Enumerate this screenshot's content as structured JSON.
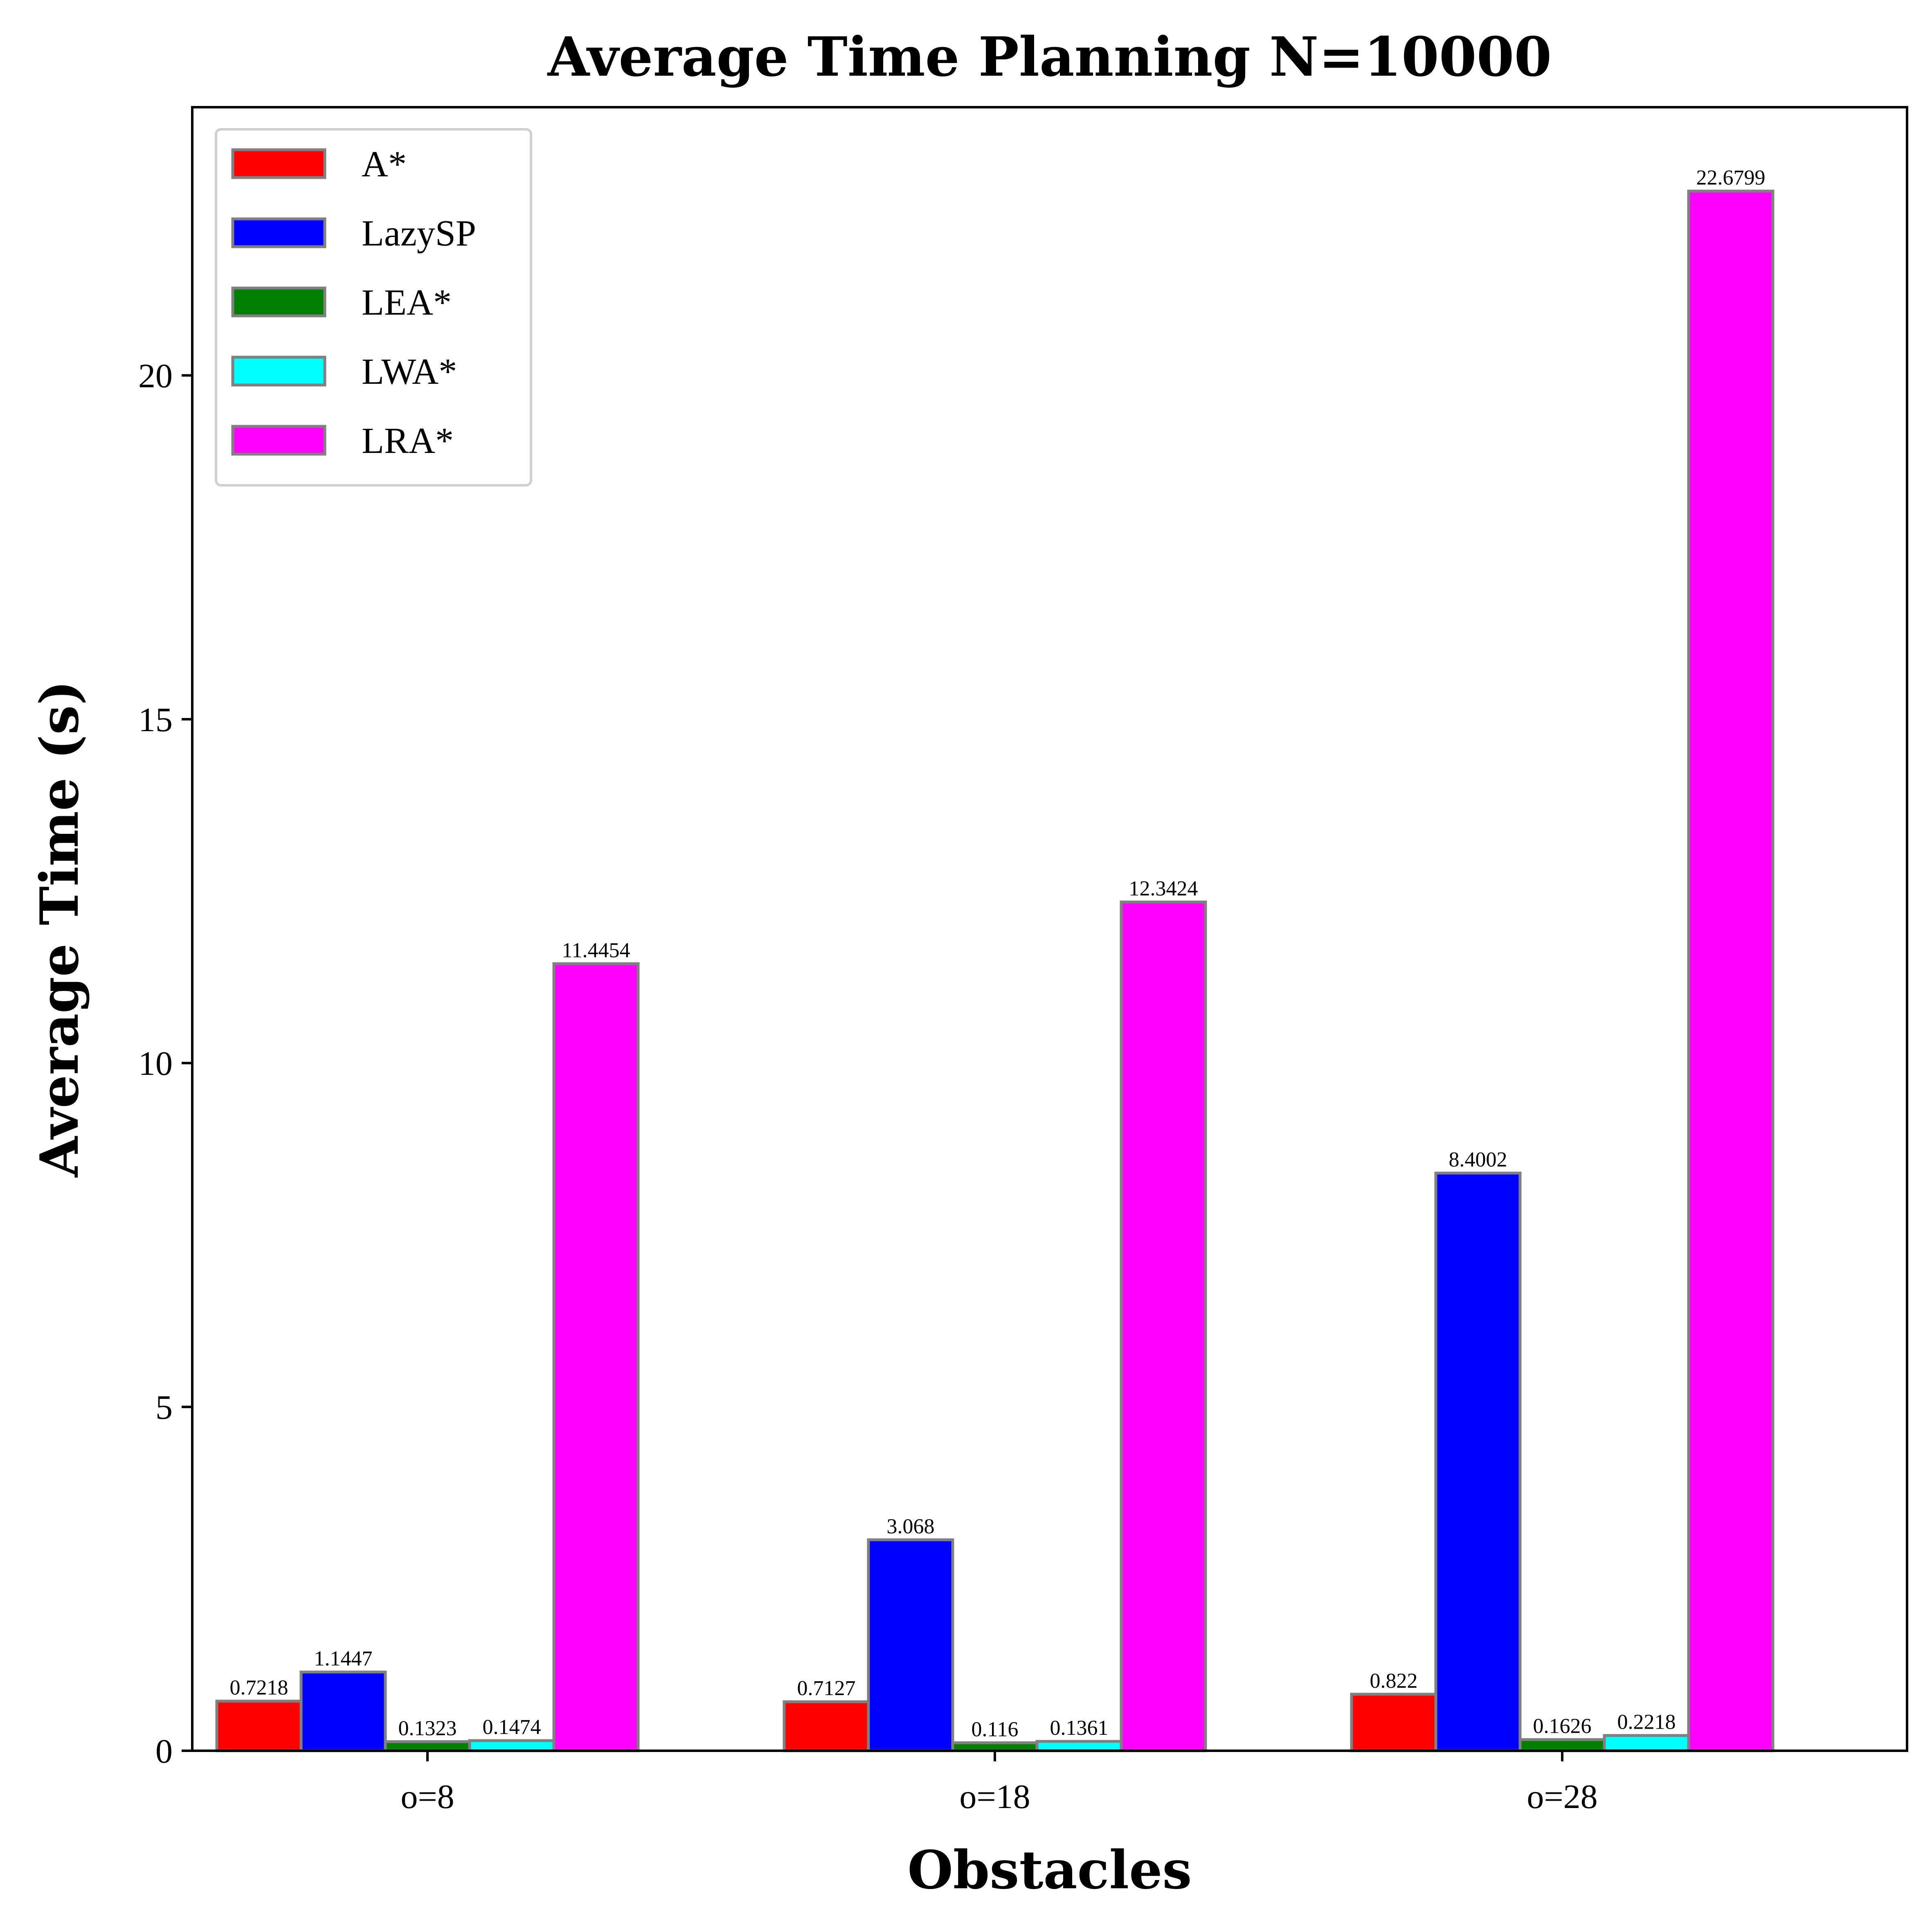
{
  "chart_data": {
    "type": "bar",
    "title": "Average Time Planning N=10000",
    "xlabel": "Obstacles",
    "ylabel": "Average Time (s)",
    "categories": [
      "o=8",
      "o=18",
      "o=28"
    ],
    "ylim": [
      0,
      23.9
    ],
    "yticks": [
      0,
      5,
      10,
      15,
      20
    ],
    "grid": false,
    "legend_position": "upper-left",
    "series": [
      {
        "name": "A*",
        "color": "#ff0000",
        "values": [
          0.7218,
          0.7127,
          0.822
        ],
        "labels": [
          "0.7218",
          "0.7127",
          "0.822"
        ]
      },
      {
        "name": "LazySP",
        "color": "#0000ff",
        "values": [
          1.1447,
          3.068,
          8.4002
        ],
        "labels": [
          "1.1447",
          "3.068",
          "8.4002"
        ]
      },
      {
        "name": "LEA*",
        "color": "#008000",
        "values": [
          0.1323,
          0.116,
          0.1626
        ],
        "labels": [
          "0.1323",
          "0.116",
          "0.1626"
        ]
      },
      {
        "name": "LWA*",
        "color": "#00ffff",
        "values": [
          0.1474,
          0.1361,
          0.2218
        ],
        "labels": [
          "0.1474",
          "0.1361",
          "0.2218"
        ]
      },
      {
        "name": "LRA*",
        "color": "#ff00ff",
        "values": [
          11.4454,
          12.3424,
          22.6799
        ],
        "labels": [
          "11.4454",
          "12.3424",
          "22.6799"
        ]
      }
    ],
    "bar_edge_color": "#808080"
  }
}
